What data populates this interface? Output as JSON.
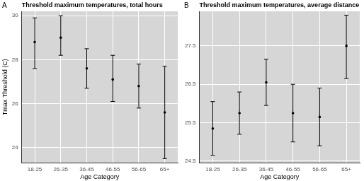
{
  "chart_data": [
    {
      "type": "scatter",
      "annotation": "A",
      "title": "Threshold maximum temperatures, total hours",
      "x_label": "Age Category",
      "y_label": "Tmax Threshold (C)",
      "categories": [
        "18-25",
        "26-35",
        "36-45",
        "46-55",
        "56-65",
        "65+"
      ],
      "values": [
        28.8,
        29.0,
        27.6,
        27.1,
        26.8,
        25.6
      ],
      "error_low": [
        27.6,
        28.2,
        26.7,
        26.1,
        25.8,
        23.5
      ],
      "error_high": [
        29.9,
        30.0,
        28.5,
        28.2,
        27.8,
        27.7
      ],
      "color": "#000000",
      "marker": "circle",
      "ylim": [
        23.3,
        30.2
      ],
      "yticks": [
        24,
        26,
        28,
        30
      ],
      "grid": true
    },
    {
      "type": "scatter",
      "annotation": "B",
      "title": "Threshold maximum temperatures, average distance",
      "x_label": "Age Category",
      "categories": [
        "18-25",
        "26-35",
        "36-45",
        "46-55",
        "56-65",
        "65+"
      ],
      "values": [
        25.35,
        25.75,
        26.55,
        25.75,
        25.65,
        27.5
      ],
      "error_low": [
        24.65,
        25.2,
        25.95,
        25.0,
        24.9,
        26.65
      ],
      "error_high": [
        26.05,
        26.3,
        27.15,
        26.5,
        26.4,
        28.3
      ],
      "color": "#000000",
      "marker": "circle",
      "ylim": [
        24.45,
        28.4
      ],
      "yticks": [
        24.5,
        25.5,
        26.5,
        27.5
      ],
      "grid": true
    }
  ]
}
